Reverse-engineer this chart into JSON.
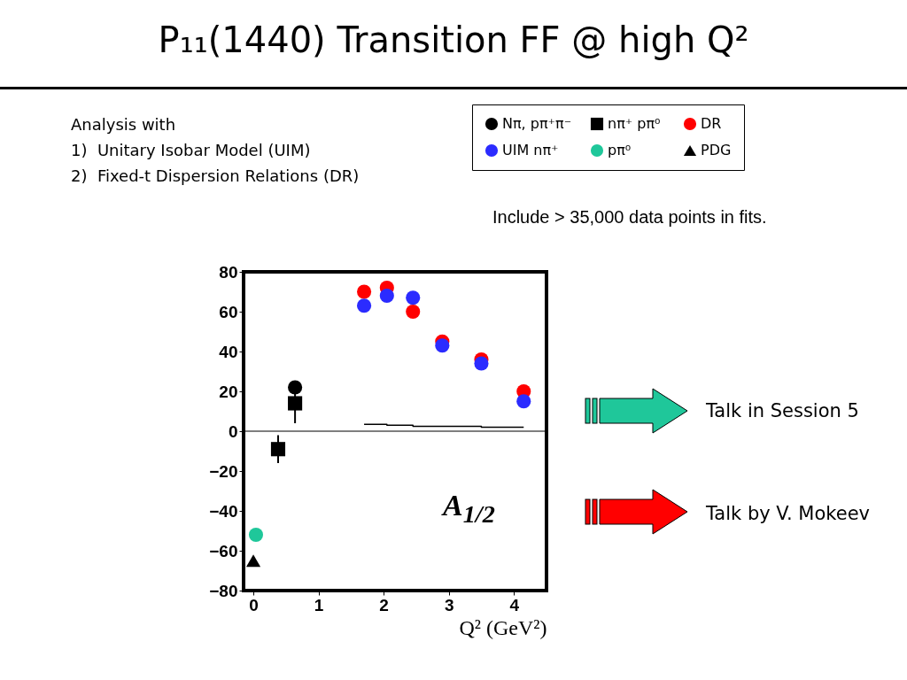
{
  "chart_data": {
    "type": "scatter",
    "title": "P₁₁(1440) Transition FF @ high Q²",
    "xlabel": "Q² (GeV²)",
    "xlim": [
      -0.15,
      4.5
    ],
    "xticks": [
      0,
      1,
      2,
      3,
      4
    ],
    "ylim": [
      -80,
      80
    ],
    "yticks": [
      -80,
      -60,
      -40,
      -20,
      0,
      20,
      40,
      60,
      80
    ],
    "grid": false,
    "legend": "top right",
    "ref_lines": [
      {
        "axis": "y",
        "value": 0,
        "color": "#000000"
      }
    ],
    "series": [
      {
        "name": "Nπ, pπ⁺π⁻",
        "color": "#000000",
        "marker": "circle",
        "x": [
          0.64
        ],
        "values": [
          22
        ]
      },
      {
        "name": "nπ⁺  pπ⁰",
        "color": "#000000",
        "marker": "square",
        "x": [
          0.38,
          0.64
        ],
        "values": [
          -9,
          14
        ],
        "errors": [
          7,
          10
        ]
      },
      {
        "name": "DR",
        "color": "#ff0000",
        "marker": "circle",
        "x": [
          1.7,
          2.05,
          2.45,
          2.9,
          3.5,
          4.15
        ],
        "values": [
          70,
          72,
          60,
          45,
          36,
          20
        ]
      },
      {
        "name": "UIM  nπ⁺",
        "color": "#2b2bff",
        "marker": "circle",
        "x": [
          1.7,
          2.05,
          2.45,
          2.9,
          3.5,
          4.15
        ],
        "values": [
          63,
          68,
          67,
          43,
          34,
          15
        ]
      },
      {
        "name": "pπ⁰",
        "color": "#1fc79a",
        "marker": "circle",
        "x": [
          0.04
        ],
        "values": [
          -52
        ]
      },
      {
        "name": "PDG",
        "color": "#000000",
        "marker": "triangle",
        "x": [
          0
        ],
        "values": [
          -65
        ]
      },
      {
        "type": "step",
        "color": "#000000",
        "x": [
          1.7,
          2.05,
          2.45,
          2.9,
          3.5,
          4.15
        ],
        "values": [
          3.5,
          3,
          2.5,
          2.5,
          2,
          2
        ]
      }
    ],
    "annotations": [
      "A$_{1/2}$",
      "Analysis with\n1)  Unitary Isobar Model (UIM)\n2)  Fixed-t Dispersion Relations (DR)",
      "Include > 35,000 data points in fits.",
      "Talk in Session 5",
      "Talk by V. Mokeev"
    ]
  }
}
